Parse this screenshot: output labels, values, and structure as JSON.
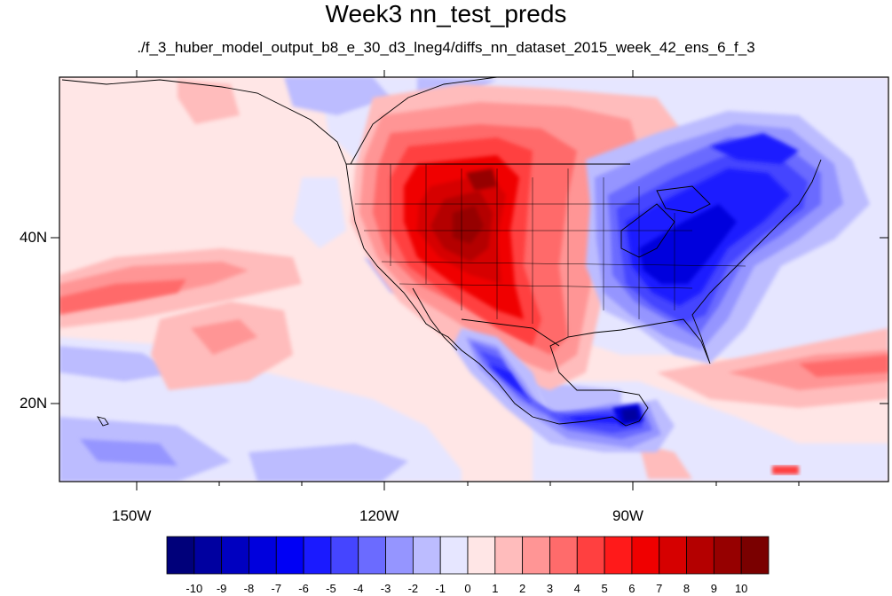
{
  "title": "Week3 nn_test_preds",
  "subtitle": "./f_3_huber_model_output_b8_e_30_d3_lneg4/diffs_nn_dataset_2015_week_42_ens_6_f_3",
  "lat_labels": [
    "40N",
    "20N"
  ],
  "lon_labels": [
    "150W",
    "120W",
    "90W"
  ],
  "colorbar": {
    "levels": [
      "-10",
      "-9",
      "-8",
      "-7",
      "-6",
      "-5",
      "-4",
      "-3",
      "-2",
      "-1",
      "0",
      "1",
      "2",
      "3",
      "4",
      "5",
      "6",
      "7",
      "8",
      "9",
      "10"
    ],
    "colors": [
      "#00007a",
      "#0000a0",
      "#0000c0",
      "#0000dd",
      "#0000f5",
      "#1a1aff",
      "#4545ff",
      "#6b6bff",
      "#9595ff",
      "#bcbcff",
      "#e6e6ff",
      "#ffe6e6",
      "#ffbcbc",
      "#ff9595",
      "#ff6b6b",
      "#ff4040",
      "#ff1a1a",
      "#f00000",
      "#d60000",
      "#b40000",
      "#960000",
      "#7a0000"
    ]
  },
  "map_extent": {
    "lon_min": -160,
    "lon_max": -62,
    "lat_min": 11,
    "lat_max": 60
  },
  "features": {
    "warm_anomaly_west_us": "positive values up to 10 over western and southwestern United States",
    "cold_anomaly_east_us": "negative values down to -8 over eastern United States and eastern Canada",
    "cold_anomaly_mexico": "negative values down to -10 over southern Mexico and Central America"
  }
}
